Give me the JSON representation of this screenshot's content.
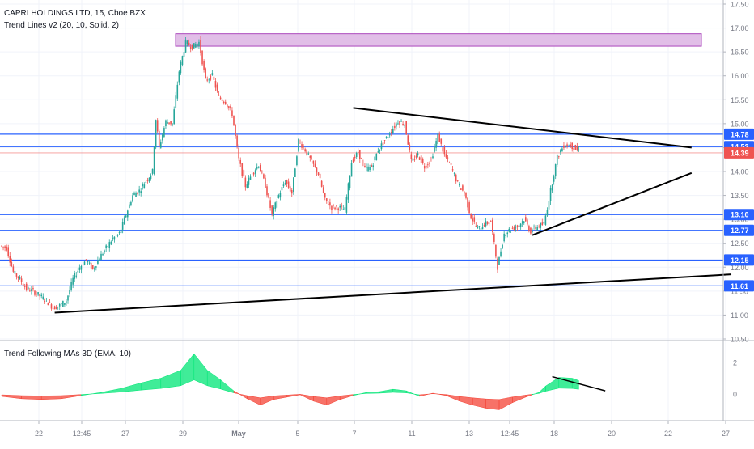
{
  "header": {
    "symbol_line": "CAPRI HOLDINGS LTD, 15, Cboe BZX",
    "indicator_line": "Trend Lines v2 (20, 10, Solid, 2)"
  },
  "lower_pane": {
    "title": "Trend Following MAs 3D (EMA, 10)",
    "y_ticks": [
      {
        "value": 2,
        "label": "2"
      },
      {
        "value": 0,
        "label": "0"
      }
    ]
  },
  "colors": {
    "bull": "#26a69a",
    "bear": "#ef5350",
    "level_line": "#2962ff",
    "last_price": "#ef5350",
    "zone_fill": "#e1bee7",
    "zone_border": "#ab47bc",
    "area_up": "#00e676",
    "area_down": "#f44336"
  },
  "chart_data": {
    "type": "candlestick",
    "y_axis": {
      "min": 10.5,
      "max": 17.5,
      "ticks": [
        "17.50",
        "17.00",
        "16.50",
        "16.00",
        "15.50",
        "15.00",
        "14.50",
        "14.00",
        "13.50",
        "13.00",
        "12.50",
        "12.00",
        "11.50",
        "11.00",
        "10.50"
      ]
    },
    "x_axis": {
      "ticks": [
        "22",
        "12:45",
        "27",
        "29",
        "May",
        "5",
        "7",
        "11",
        "13",
        "12:45",
        "18",
        "20",
        "22",
        "27"
      ]
    },
    "horizontal_levels": [
      {
        "value": 14.78,
        "label": "14.78"
      },
      {
        "value": 14.52,
        "label": "14.52"
      },
      {
        "value": 13.1,
        "label": "13.10"
      },
      {
        "value": 12.77,
        "label": "12.77"
      },
      {
        "value": 12.15,
        "label": "12.15"
      },
      {
        "value": 11.61,
        "label": "11.61"
      }
    ],
    "last_price": {
      "value": 14.39,
      "label": "14.39"
    },
    "resistance_zone": {
      "low": 16.62,
      "high": 16.88
    },
    "trend_lines": [
      {
        "from": {
          "bar": 16,
          "price": 11.05
        },
        "to": {
          "bar": 220,
          "price": 11.85
        }
      },
      {
        "from": {
          "bar": 106,
          "price": 15.33
        },
        "to": {
          "bar": 208,
          "price": 14.5
        }
      },
      {
        "from": {
          "bar": 160,
          "price": 12.67
        },
        "to": {
          "bar": 208,
          "price": 13.97
        }
      }
    ],
    "path_points": [
      [
        0,
        12.45
      ],
      [
        2,
        12.4
      ],
      [
        4,
        11.9
      ],
      [
        6,
        11.75
      ],
      [
        8,
        11.55
      ],
      [
        10,
        11.5
      ],
      [
        12,
        11.4
      ],
      [
        14,
        11.3
      ],
      [
        16,
        11.15
      ],
      [
        18,
        11.2
      ],
      [
        20,
        11.3
      ],
      [
        22,
        11.75
      ],
      [
        24,
        12.0
      ],
      [
        26,
        12.15
      ],
      [
        28,
        11.95
      ],
      [
        30,
        12.2
      ],
      [
        32,
        12.4
      ],
      [
        34,
        12.6
      ],
      [
        36,
        12.7
      ],
      [
        38,
        13.1
      ],
      [
        40,
        13.5
      ],
      [
        42,
        13.6
      ],
      [
        44,
        13.8
      ],
      [
        46,
        14.0
      ],
      [
        47,
        15.1
      ],
      [
        48,
        14.5
      ],
      [
        50,
        15.05
      ],
      [
        52,
        15.0
      ],
      [
        54,
        16.1
      ],
      [
        56,
        16.7
      ],
      [
        58,
        16.6
      ],
      [
        60,
        16.7
      ],
      [
        62,
        15.9
      ],
      [
        64,
        16.0
      ],
      [
        66,
        15.55
      ],
      [
        68,
        15.45
      ],
      [
        70,
        15.2
      ],
      [
        72,
        14.25
      ],
      [
        74,
        13.7
      ],
      [
        76,
        13.95
      ],
      [
        78,
        14.15
      ],
      [
        80,
        13.7
      ],
      [
        82,
        13.1
      ],
      [
        84,
        13.5
      ],
      [
        86,
        13.8
      ],
      [
        88,
        13.55
      ],
      [
        90,
        14.65
      ],
      [
        92,
        14.45
      ],
      [
        94,
        14.2
      ],
      [
        96,
        13.95
      ],
      [
        98,
        13.4
      ],
      [
        100,
        13.25
      ],
      [
        102,
        13.25
      ],
      [
        104,
        13.2
      ],
      [
        106,
        14.2
      ],
      [
        108,
        14.4
      ],
      [
        110,
        14.05
      ],
      [
        112,
        14.1
      ],
      [
        114,
        14.45
      ],
      [
        116,
        14.65
      ],
      [
        118,
        14.85
      ],
      [
        120,
        15.05
      ],
      [
        122,
        15.0
      ],
      [
        124,
        14.2
      ],
      [
        126,
        14.35
      ],
      [
        128,
        14.1
      ],
      [
        130,
        14.25
      ],
      [
        132,
        14.75
      ],
      [
        134,
        14.35
      ],
      [
        136,
        14.1
      ],
      [
        138,
        13.75
      ],
      [
        140,
        13.55
      ],
      [
        142,
        13.05
      ],
      [
        144,
        12.8
      ],
      [
        146,
        12.9
      ],
      [
        148,
        12.95
      ],
      [
        150,
        12.0
      ],
      [
        152,
        12.7
      ],
      [
        154,
        12.8
      ],
      [
        156,
        12.85
      ],
      [
        158,
        13.0
      ],
      [
        160,
        12.75
      ],
      [
        162,
        12.85
      ],
      [
        164,
        12.9
      ],
      [
        166,
        13.6
      ],
      [
        168,
        14.3
      ],
      [
        170,
        14.55
      ],
      [
        172,
        14.55
      ],
      [
        174,
        14.45
      ]
    ],
    "indicator_points": [
      [
        0,
        -0.15
      ],
      [
        6,
        -0.3
      ],
      [
        12,
        -0.35
      ],
      [
        18,
        -0.3
      ],
      [
        24,
        -0.1
      ],
      [
        30,
        0.1
      ],
      [
        36,
        0.35
      ],
      [
        42,
        0.7
      ],
      [
        48,
        1.0
      ],
      [
        54,
        1.5
      ],
      [
        58,
        2.55
      ],
      [
        62,
        1.5
      ],
      [
        66,
        0.9
      ],
      [
        70,
        0.2
      ],
      [
        74,
        -0.3
      ],
      [
        78,
        -0.7
      ],
      [
        82,
        -0.35
      ],
      [
        86,
        -0.2
      ],
      [
        90,
        -0.05
      ],
      [
        94,
        -0.45
      ],
      [
        98,
        -0.7
      ],
      [
        102,
        -0.35
      ],
      [
        106,
        -0.1
      ],
      [
        110,
        0.1
      ],
      [
        114,
        0.15
      ],
      [
        118,
        0.3
      ],
      [
        122,
        0.2
      ],
      [
        126,
        -0.15
      ],
      [
        130,
        0.05
      ],
      [
        134,
        -0.1
      ],
      [
        138,
        -0.45
      ],
      [
        142,
        -0.7
      ],
      [
        146,
        -0.9
      ],
      [
        150,
        -1.0
      ],
      [
        154,
        -0.55
      ],
      [
        158,
        -0.2
      ],
      [
        160,
        -0.05
      ],
      [
        162,
        0.1
      ],
      [
        164,
        0.5
      ],
      [
        168,
        1.05
      ],
      [
        172,
        1.0
      ],
      [
        174,
        0.85
      ]
    ],
    "indicator_trend_line": {
      "from": {
        "bar": 166,
        "value": 1.1
      },
      "to": {
        "bar": 182,
        "value": 0.2
      }
    }
  }
}
